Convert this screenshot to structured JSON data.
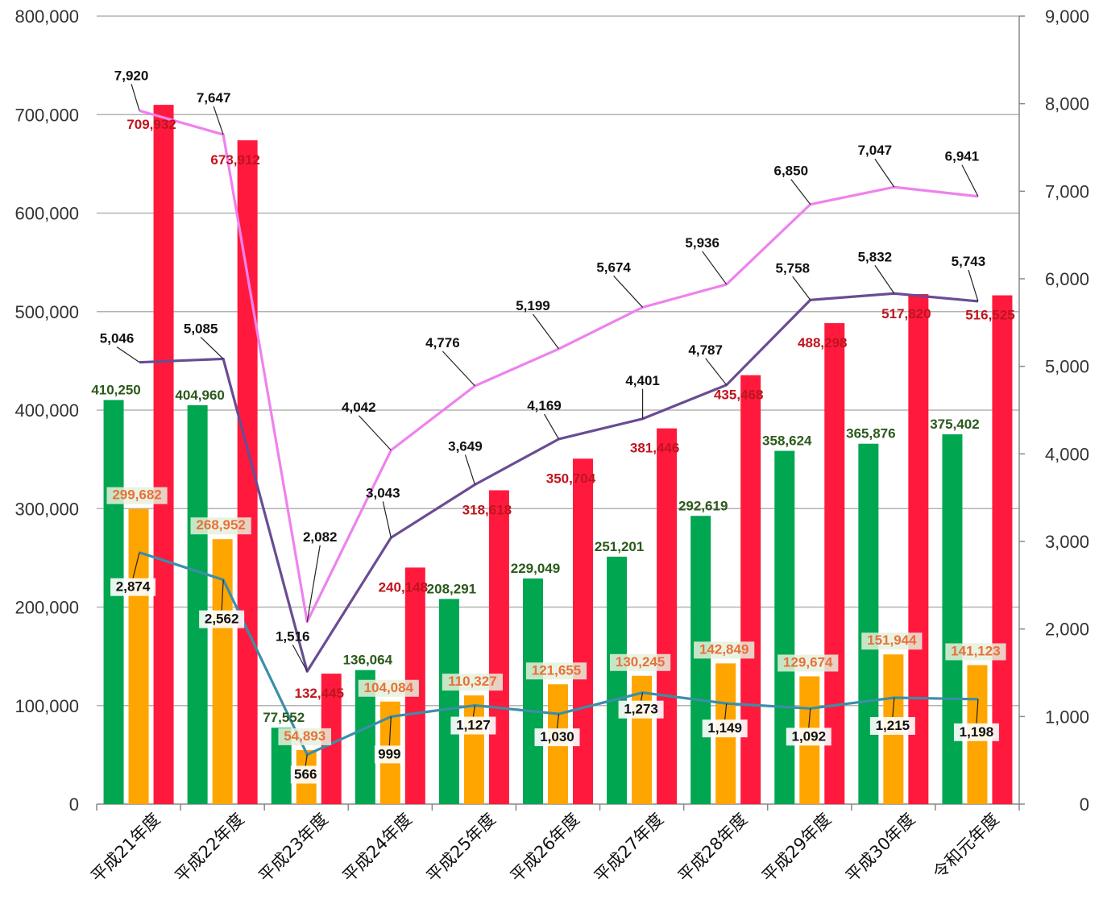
{
  "chart_data": {
    "type": "bar",
    "categories": [
      "平成21年度",
      "平成22年度",
      "平成23年度",
      "平成24年度",
      "平成25年度",
      "平成26年度",
      "平成27年度",
      "平成28年度",
      "平成29年度",
      "平成30年度",
      "令和元年度"
    ],
    "y_left": {
      "min": 0,
      "max": 800000,
      "ticks": [
        "0",
        "100,000",
        "200,000",
        "300,000",
        "400,000",
        "500,000",
        "600,000",
        "700,000",
        "800,000"
      ]
    },
    "y_right": {
      "min": 0,
      "max": 9000,
      "ticks": [
        "0",
        "1,000",
        "2,000",
        "3,000",
        "4,000",
        "5,000",
        "6,000",
        "7,000",
        "8,000",
        "9,000"
      ]
    },
    "grid": true,
    "bar_series": [
      {
        "color": "#00a650",
        "label_color": "#2b5a1b",
        "values": [
          410250,
          404960,
          77552,
          136064,
          208291,
          229049,
          251201,
          292619,
          358624,
          365876,
          375402
        ],
        "labels": [
          "410,250",
          "404,960",
          "77,552",
          "136,064",
          "208,291",
          "229,049",
          "251,201",
          "292,619",
          "358,624",
          "365,876",
          "375,402"
        ]
      },
      {
        "color": "#ffa500",
        "label_color": "#e8703a",
        "values": [
          299682,
          268952,
          54893,
          104084,
          110327,
          121655,
          130245,
          142849,
          129674,
          151944,
          141123
        ],
        "labels": [
          "299,682",
          "268,952",
          "54,893",
          "104,084",
          "110,327",
          "121,655",
          "130,245",
          "142,849",
          "129,674",
          "151,944",
          "141,123"
        ]
      },
      {
        "color": "#ff1a3d",
        "label_color": "#c0141f",
        "values": [
          709932,
          673912,
          132445,
          240148,
          318618,
          350704,
          381446,
          435468,
          488298,
          517820,
          516525
        ],
        "labels": [
          "709,932",
          "673,912",
          "132,445",
          "240,148",
          "318,618",
          "350,704",
          "381,446",
          "435,468",
          "488,298",
          "517,820",
          "516,525"
        ]
      }
    ],
    "line_series": [
      {
        "color": "#ee82ee",
        "values": [
          7920,
          7647,
          2082,
          4042,
          4776,
          5199,
          5674,
          5936,
          6850,
          7047,
          6941
        ],
        "labels": [
          "7,920",
          "7,647",
          "2,082",
          "4,042",
          "4,776",
          "5,199",
          "5,674",
          "5,936",
          "6,850",
          "7,047",
          "6,941"
        ]
      },
      {
        "color": "#6a4c93",
        "values": [
          5046,
          5085,
          1516,
          3043,
          3649,
          4169,
          4401,
          4787,
          5758,
          5832,
          5743
        ],
        "labels": [
          "5,046",
          "5,085",
          "1,516",
          "3,043",
          "3,649",
          "4,169",
          "4,401",
          "4,787",
          "5,758",
          "5,832",
          "5,743"
        ]
      },
      {
        "color": "#3a8fa8",
        "values": [
          2874,
          2562,
          566,
          999,
          1127,
          1030,
          1273,
          1149,
          1092,
          1215,
          1198
        ],
        "labels": [
          "2,874",
          "2,562",
          "566",
          "999",
          "1,127",
          "1,030",
          "1,273",
          "1,149",
          "1,092",
          "1,215",
          "1,198"
        ]
      }
    ],
    "colors": {
      "grid": "#b3b3b3",
      "axis": "#888888"
    }
  }
}
